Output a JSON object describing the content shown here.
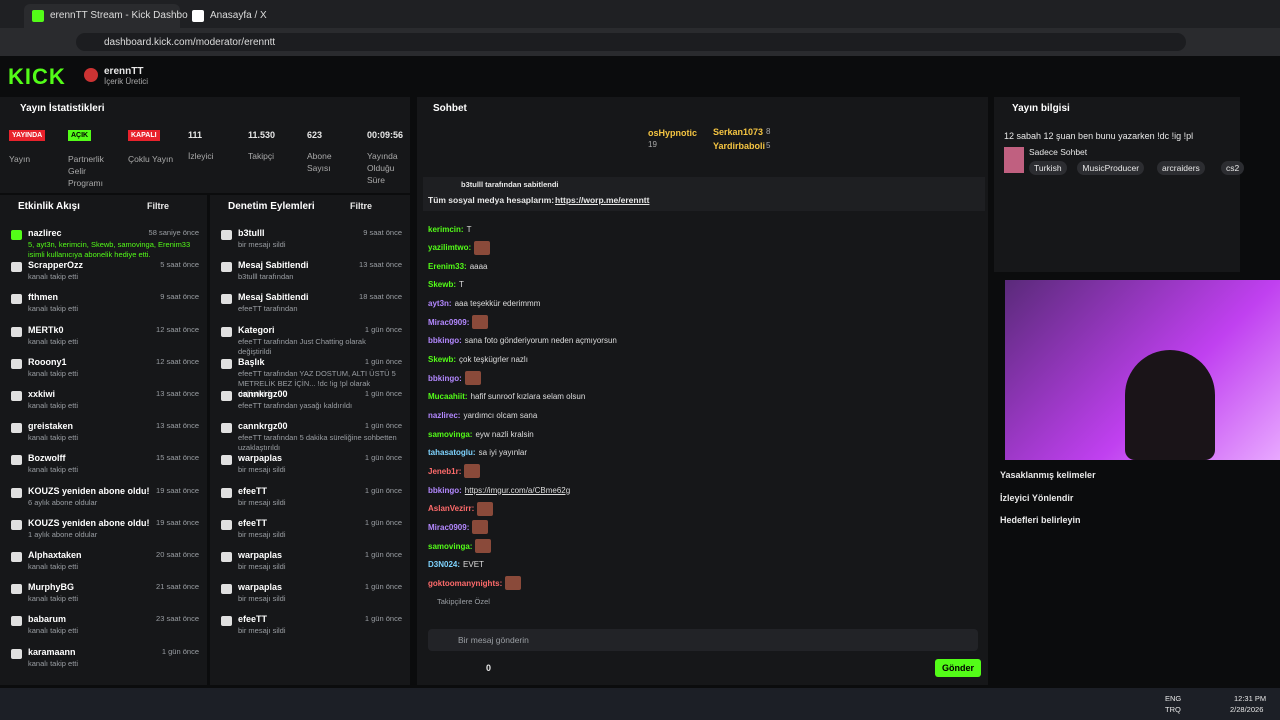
{
  "browser": {
    "tabs": [
      "erennTT Stream - Kick Dashbo",
      "Anasayfa / X"
    ],
    "url": "dashboard.kick.com/moderator/erenntt"
  },
  "header": {
    "logo": "KICK",
    "user": "erennTT",
    "role": "İçerik Üretici"
  },
  "stats": {
    "title": "Yayın İstatistikleri",
    "badges": [
      {
        "badge": "YAYINDA",
        "label": "Yayın"
      },
      {
        "badge": "AÇIK",
        "label": "Partnerlik Gelir Programı"
      },
      {
        "badge": "KAPALI",
        "label": "Çoklu Yayın"
      }
    ],
    "numbers": [
      {
        "value": "111",
        "label": "İzleyici"
      },
      {
        "value": "11.530",
        "label": "Takipçi"
      },
      {
        "value": "623",
        "label": "Abone Sayısı"
      },
      {
        "value": "00:09:56",
        "label": "Yayında Olduğu Süre"
      }
    ]
  },
  "activity": {
    "title": "Etkinlik Akışı",
    "filter": "Filtre",
    "items": [
      {
        "name": "nazlirec",
        "time": "58 saniye önce",
        "desc": "5, ayt3n, kerimcin, Skewb, samovinga, Erenim33 isimli kullanıcıya abonelik hediye etti."
      },
      {
        "name": "ScrapperOzz",
        "time": "5 saat önce",
        "desc": "kanalı takip etti"
      },
      {
        "name": "fthmen",
        "time": "9 saat önce",
        "desc": "kanalı takip etti"
      },
      {
        "name": "MERTk0",
        "time": "12 saat önce",
        "desc": "kanalı takip etti"
      },
      {
        "name": "Rooony1",
        "time": "12 saat önce",
        "desc": "kanalı takip etti"
      },
      {
        "name": "xxkiwi",
        "time": "13 saat önce",
        "desc": "kanalı takip etti"
      },
      {
        "name": "greistaken",
        "time": "13 saat önce",
        "desc": "kanalı takip etti"
      },
      {
        "name": "Bozwolff",
        "time": "15 saat önce",
        "desc": "kanalı takip etti"
      },
      {
        "name": "KOUZS yeniden abone oldu!",
        "time": "19 saat önce",
        "desc": "6 aylık abone oldular"
      },
      {
        "name": "KOUZS yeniden abone oldu!",
        "time": "19 saat önce",
        "desc": "1 aylık abone oldular"
      },
      {
        "name": "Alphaxtaken",
        "time": "20 saat önce",
        "desc": "kanalı takip etti"
      },
      {
        "name": "MurphyBG",
        "time": "21 saat önce",
        "desc": "kanalı takip etti"
      },
      {
        "name": "babarum",
        "time": "23 saat önce",
        "desc": "kanalı takip etti"
      },
      {
        "name": "karamaann",
        "time": "1 gün önce",
        "desc": "kanalı takip etti"
      }
    ]
  },
  "moderation": {
    "title": "Denetim Eylemleri",
    "filter": "Filtre",
    "items": [
      {
        "name": "b3tulll",
        "time": "9 saat önce",
        "desc": "bir mesajı sildi"
      },
      {
        "name": "Mesaj Sabitlendi",
        "time": "13 saat önce",
        "desc": "b3tulll tarafından"
      },
      {
        "name": "Mesaj Sabitlendi",
        "time": "18 saat önce",
        "desc": "efeeTT tarafından"
      },
      {
        "name": "Kategori",
        "time": "1 gün önce",
        "desc": "efeeTT tarafından Just Chatting olarak değiştirildi"
      },
      {
        "name": "Başlık",
        "time": "1 gün önce",
        "desc": "efeeTT tarafından YAZ DOSTUM, ALTI ÜSTÜ 5 METRELİK BEZ İÇİN... !dc !ig !pl olarak değiştirildi"
      },
      {
        "name": "cannkrgz00",
        "time": "1 gün önce",
        "desc": "efeeTT tarafından yasağı kaldırıldı"
      },
      {
        "name": "cannkrgz00",
        "time": "1 gün önce",
        "desc": "efeeTT tarafından 5 dakika süreliğine sohbetten uzaklaştırıldı"
      },
      {
        "name": "warpaplas",
        "time": "1 gün önce",
        "desc": "bir mesajı sildi"
      },
      {
        "name": "efeeTT",
        "time": "1 gün önce",
        "desc": "bir mesajı sildi"
      },
      {
        "name": "efeeTT",
        "time": "1 gün önce",
        "desc": "bir mesajı sildi"
      },
      {
        "name": "warpaplas",
        "time": "1 gün önce",
        "desc": "bir mesajı sildi"
      },
      {
        "name": "warpaplas",
        "time": "1 gün önce",
        "desc": "bir mesajı sildi"
      },
      {
        "name": "efeeTT",
        "time": "1 gün önce",
        "desc": "bir mesajı sildi"
      }
    ]
  },
  "chat": {
    "title": "Sohbet",
    "gifters": [
      {
        "name": "osHypnotic",
        "count": 19
      },
      {
        "name": "Serkan1073",
        "count": 8
      },
      {
        "name": "Yardirbaboli",
        "count": 5
      }
    ],
    "pinned": {
      "by": "b3tulll tarafından sabitlendi",
      "text": "Tüm sosyal medya hesaplarım:",
      "link": "https://worp.me/erenntt"
    },
    "messages": [
      {
        "user": "kerimcin",
        "color": "#53fc18",
        "text": "T"
      },
      {
        "user": "yazilimtwo",
        "color": "#53fc18"
      },
      {
        "user": "Erenim33",
        "color": "#53fc18",
        "text": "aaaa"
      },
      {
        "user": "Skewb",
        "color": "#53fc18",
        "text": "T"
      },
      {
        "user": "ayt3n",
        "color": "#b388ff",
        "text": "aaa teşekkür ederimmm"
      },
      {
        "user": "Mirac0909",
        "color": "#b388ff"
      },
      {
        "user": "bbkingo",
        "color": "#b388ff",
        "text": "sana foto gönderiyorum neden açmıyorsun"
      },
      {
        "user": "Skewb",
        "color": "#53fc18",
        "text": "çok teşkügrler nazlı"
      },
      {
        "user": "bbkingo",
        "color": "#b388ff"
      },
      {
        "user": "Mucaahiit",
        "color": "#53fc18",
        "text": "hafif sunroof kızlara selam olsun"
      },
      {
        "user": "nazlirec",
        "color": "#b388ff",
        "text": "yardımcı olcam sana"
      },
      {
        "user": "samovinga",
        "color": "#53fc18",
        "text": "eyw nazli kralsin"
      },
      {
        "user": "tahasatoglu",
        "color": "#7fd4ff",
        "text": "sa iyi yayınlar"
      },
      {
        "user": "Jeneb1r",
        "color": "#ff6b6b"
      },
      {
        "user": "bbkingo",
        "color": "#b388ff",
        "link": "https://imgur.com/a/CBme62g"
      },
      {
        "user": "AslanVezirr",
        "color": "#ff6b6b"
      },
      {
        "user": "Mirac0909",
        "color": "#b388ff"
      },
      {
        "user": "samovinga",
        "color": "#53fc18"
      },
      {
        "user": "D3N024",
        "color": "#7fd4ff",
        "text": "EVET"
      },
      {
        "user": "goktoomanynights",
        "color": "#ff6b6b"
      }
    ],
    "followers_only": "Takipçilere Özel",
    "placeholder": "Bir mesaj gönderin",
    "count": 0,
    "send": "Gönder"
  },
  "info": {
    "title": "Yayın bilgisi",
    "stream_title": "12 sabah 12 şuan ben bunu yazarken !dc !ig !pl",
    "category": "Sadece Sohbet",
    "tags": [
      "Turkish",
      "MusicProducer",
      "arcraiders",
      "cs2"
    ],
    "links": [
      "Yasaklanmış kelimeler",
      "İzleyici Yönlendir",
      "Hedefleri belirleyin"
    ]
  },
  "taskbar": {
    "lang": "ENG",
    "layout": "TRQ",
    "time": "12:31 PM",
    "date": "2/28/2026"
  }
}
